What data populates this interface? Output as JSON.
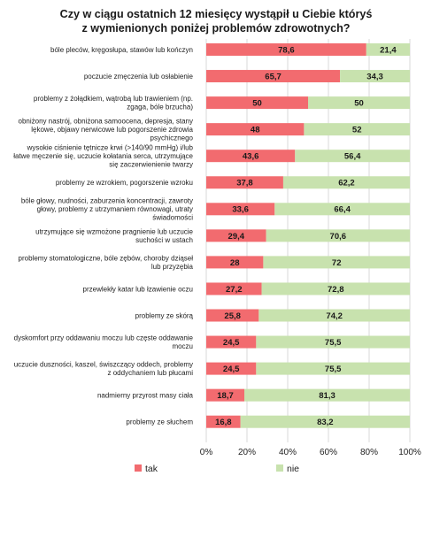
{
  "chart_data": {
    "type": "bar",
    "stacked": true,
    "orientation": "horizontal",
    "percent_stacked": true,
    "title": [
      "Czy w ciągu ostatnich 12 miesięcy wystąpił u Ciebie któryś",
      "z wymienionych poniżej problemów zdrowotnych?"
    ],
    "categories": [
      [
        "bóle pleców, kręgosłupa, stawów lub kończyn"
      ],
      [
        "poczucie zmęczenia lub osłabienie"
      ],
      [
        "problemy z żołądkiem, wątrobą lub trawieniem (np.",
        "zgaga, bóle brzucha)"
      ],
      [
        "obniżony nastrój, obniżona samoocena, depresja, stany",
        "lękowe, objawy nerwicowe lub pogorszenie zdrowia",
        "psychicznego"
      ],
      [
        "wysokie ciśnienie tętnicze krwi (>140/90 mmHg) i/lub",
        "łatwe męczenie się, uczucie kołatania serca, utrzymujące",
        "się zaczerwienienie twarzy"
      ],
      [
        "problemy ze wzrokiem, pogorszenie wzroku"
      ],
      [
        "bóle głowy, nudności, zaburzenia koncentracji, zawroty",
        "głowy, problemy z utrzymaniem równowagi, utraty",
        "świadomości"
      ],
      [
        "utrzymujące się wzmożone pragnienie lub uczucie",
        "suchości w ustach"
      ],
      [
        "problemy stomatologiczne, bóle zębów, choroby dziąseł",
        "lub przyzębia"
      ],
      [
        "przewlekły katar lub łzawienie oczu"
      ],
      [
        "problemy ze skórą"
      ],
      [
        "dyskomfort przy oddawaniu moczu lub częste oddawanie",
        "moczu"
      ],
      [
        "uczucie duszności, kaszel, świszczący oddech, problemy",
        "z oddychaniem lub płucami"
      ],
      [
        "nadmierny przyrost masy ciała"
      ],
      [
        "problemy ze słuchem"
      ]
    ],
    "series": [
      {
        "name": "tak",
        "color": "#f26b6f",
        "values": [
          78.6,
          65.7,
          50,
          48,
          43.6,
          37.8,
          33.6,
          29.4,
          28,
          27.2,
          25.8,
          24.5,
          24.5,
          18.7,
          16.8
        ]
      },
      {
        "name": "nie",
        "color": "#c8e2ae",
        "values": [
          21.4,
          34.3,
          50,
          52,
          56.4,
          62.2,
          66.4,
          70.6,
          72,
          72.8,
          74.2,
          75.5,
          75.5,
          81.3,
          83.2
        ]
      }
    ],
    "value_labels": [
      [
        "78,6",
        "65,7",
        "50",
        "48",
        "43,6",
        "37,8",
        "33,6",
        "29,4",
        "28",
        "27,2",
        "25,8",
        "24,5",
        "24,5",
        "18,7",
        "16,8"
      ],
      [
        "21,4",
        "34,3",
        "50",
        "52",
        "56,4",
        "62,2",
        "66,4",
        "70,6",
        "72",
        "72,8",
        "74,2",
        "75,5",
        "75,5",
        "81,3",
        "83,2"
      ]
    ],
    "xlim": [
      0,
      100
    ],
    "x_ticks": [
      "0%",
      "20%",
      "40%",
      "60%",
      "80%",
      "100%"
    ],
    "grid": true,
    "legend": "bottom-left"
  }
}
